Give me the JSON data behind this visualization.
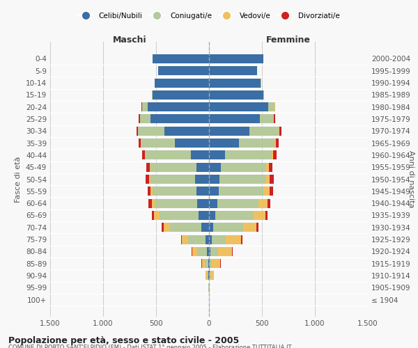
{
  "age_groups": [
    "100+",
    "95-99",
    "90-94",
    "85-89",
    "80-84",
    "75-79",
    "70-74",
    "65-69",
    "60-64",
    "55-59",
    "50-54",
    "45-49",
    "40-44",
    "35-39",
    "30-34",
    "25-29",
    "20-24",
    "15-19",
    "10-14",
    "5-9",
    "0-4"
  ],
  "birth_years": [
    "≤ 1904",
    "1905-1909",
    "1910-1914",
    "1915-1919",
    "1920-1924",
    "1925-1929",
    "1930-1934",
    "1935-1939",
    "1940-1944",
    "1945-1949",
    "1950-1954",
    "1955-1959",
    "1960-1964",
    "1965-1969",
    "1970-1974",
    "1975-1979",
    "1980-1984",
    "1985-1989",
    "1990-1994",
    "1995-1999",
    "2000-2004"
  ],
  "colors": {
    "celibi": "#3a6ea5",
    "coniugati": "#b5c99a",
    "vedovi": "#f0c060",
    "divorziati": "#cc2222"
  },
  "males": {
    "celibi": [
      2,
      2,
      5,
      8,
      20,
      35,
      70,
      100,
      110,
      120,
      130,
      120,
      170,
      320,
      420,
      550,
      580,
      530,
      510,
      480,
      530
    ],
    "coniugati": [
      0,
      2,
      15,
      30,
      90,
      160,
      300,
      370,
      400,
      410,
      420,
      430,
      430,
      320,
      250,
      100,
      50,
      10,
      5,
      2,
      2
    ],
    "vedovi": [
      0,
      2,
      10,
      30,
      50,
      60,
      60,
      50,
      30,
      20,
      15,
      10,
      5,
      5,
      2,
      2,
      0,
      0,
      0,
      0,
      0
    ],
    "divorziati": [
      0,
      0,
      0,
      2,
      5,
      8,
      15,
      20,
      30,
      30,
      35,
      30,
      25,
      20,
      15,
      10,
      5,
      2,
      0,
      0,
      0
    ]
  },
  "females": {
    "celibi": [
      2,
      2,
      5,
      8,
      15,
      25,
      40,
      60,
      80,
      90,
      100,
      110,
      150,
      280,
      380,
      480,
      560,
      510,
      490,
      455,
      510
    ],
    "coniugati": [
      0,
      2,
      10,
      20,
      70,
      130,
      280,
      360,
      390,
      420,
      430,
      430,
      440,
      340,
      280,
      130,
      60,
      10,
      5,
      2,
      2
    ],
    "vedovi": [
      0,
      2,
      30,
      80,
      130,
      150,
      130,
      110,
      80,
      60,
      40,
      25,
      15,
      10,
      5,
      2,
      2,
      0,
      0,
      0,
      0
    ],
    "divorziati": [
      0,
      0,
      2,
      5,
      8,
      10,
      20,
      25,
      30,
      35,
      40,
      35,
      30,
      25,
      20,
      10,
      5,
      2,
      0,
      0,
      0
    ]
  },
  "title": "Popolazione per età, sesso e stato civile - 2005",
  "subtitle": "COMUNE DI PORTO SANT'ELPIDIO (FM) - Dati ISTAT 1° gennaio 2005 - Elaborazione TUTTITALIA.IT",
  "xlabel_left": "Maschi",
  "xlabel_right": "Femmine",
  "ylabel_left": "Fasce di età",
  "ylabel_right": "Anni di nascita",
  "xlim": 1500,
  "background_color": "#f8f8f8",
  "grid_color": "#cccccc",
  "legend_labels": [
    "Celibi/Nubili",
    "Coniugati/e",
    "Vedovi/e",
    "Divorziati/e"
  ]
}
